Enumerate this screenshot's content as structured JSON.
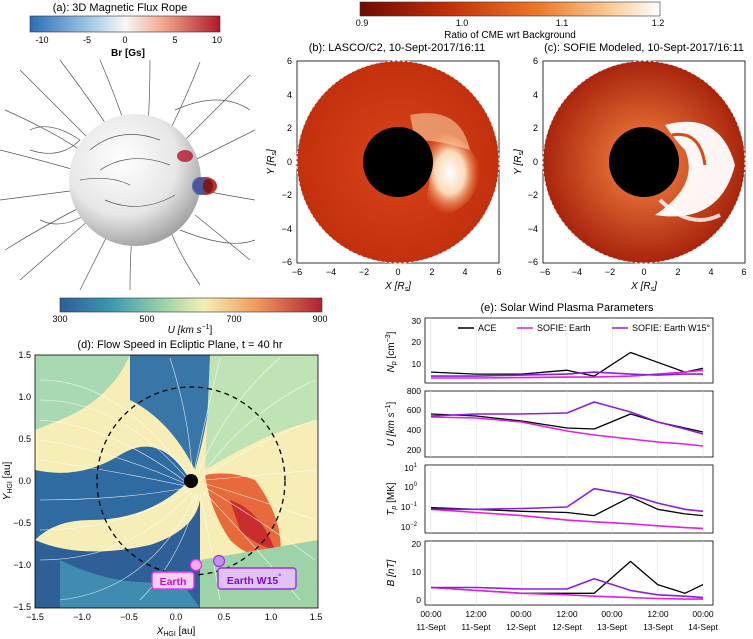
{
  "panel_a": {
    "title": "(a): 3D Magnetic Flux Rope",
    "colorbar_ticks": [
      "-10",
      "-5",
      "0",
      "5",
      "10"
    ],
    "colorbar_label": "Br [Gs]"
  },
  "top_colorbar": {
    "ticks": [
      "0.9",
      "1.0",
      "1.1",
      "1.2"
    ],
    "label": "Ratio of CME wrt Background"
  },
  "panel_b": {
    "title": "(b): LASCO/C2, 10-Sept-2017/16:11",
    "xlabel": "X [R",
    "xlabel_sub": "s",
    "ylabel": "Y [R",
    "ylabel_sub": "s",
    "ticks": [
      "−6",
      "−4",
      "−2",
      "0",
      "2",
      "4",
      "6"
    ]
  },
  "panel_c": {
    "title": "(c): SOFIE Modeled, 10-Sept-2017/16:11",
    "xlabel": "X [R",
    "xlabel_sub": "s",
    "ylabel": "Y [R",
    "ylabel_sub": "s",
    "ticks": [
      "−6",
      "−4",
      "−2",
      "0",
      "2",
      "4",
      "6"
    ]
  },
  "panel_d": {
    "colorbar_ticks": [
      "300",
      "500",
      "700",
      "900"
    ],
    "colorbar_label": "U [km s",
    "colorbar_label_sup": "−1",
    "title": "(d): Flow Speed in Ecliptic Plane, t = 40 hr",
    "xlabel": "X",
    "xlabel_sub": "HGI",
    "xlabel_unit": " [au]",
    "ylabel": "Y",
    "ylabel_sub": "HGI",
    "ylabel_unit": " [au]",
    "xticks": [
      "−1.5",
      "−1.0",
      "−0.5",
      "0.0",
      "0.5",
      "1.0",
      "1.5"
    ],
    "yticks": [
      "1.5",
      "1.0",
      "0.5",
      "0.0",
      "−0.5",
      "−1.0",
      "−1.5"
    ],
    "earth_label": "Earth",
    "earth_w15_label": "Earth W15",
    "earth_w15_sup": "°",
    "colors": {
      "earth": "#e830e8",
      "earth_w15": "#9933dd"
    }
  },
  "panel_e": {
    "title": "(e): Solar Wind Plasma Parameters",
    "legend": [
      "ACE",
      "SOFIE: Earth",
      "SOFIE: Earth W15°"
    ],
    "legend_colors": [
      "#000000",
      "#e020e0",
      "#8a1ee0"
    ],
    "x_tick_times": [
      "00:00",
      "12:00",
      "00:00",
      "12:00",
      "00:00",
      "12:00",
      "00:00"
    ],
    "x_tick_dates": [
      "11-Sept",
      "11-Sept",
      "12-Sept",
      "12-Sept",
      "13-Sept",
      "13-Sept",
      "14-Sept"
    ],
    "sub_ylabels": [
      "N",
      "U [km s",
      "T",
      "B [nT]"
    ],
    "np_ticks": [
      "10",
      "20",
      "30"
    ],
    "u_ticks": [
      "200",
      "400",
      "600",
      "800"
    ],
    "t_ticks": [
      "10",
      "10",
      "10",
      "10"
    ],
    "t_exps": [
      "1",
      "0",
      "−1",
      "−2"
    ],
    "b_ticks": [
      "0",
      "10",
      "20"
    ]
  },
  "chart_data": [
    {
      "type": "line",
      "title": "(e): Solar Wind Plasma Parameters",
      "panel": "Np",
      "ylabel": "N_p [cm^-3]",
      "ylim": [
        0,
        30
      ],
      "x_days": [
        0,
        0.5,
        1,
        1.5,
        1.8,
        2.2,
        2.5,
        2.8,
        3
      ],
      "series": [
        {
          "name": "ACE",
          "values": [
            4,
            3,
            3,
            5,
            2,
            14,
            9,
            4,
            6
          ]
        },
        {
          "name": "SOFIE: Earth",
          "values": [
            1,
            1,
            1.2,
            1.5,
            1.5,
            2,
            3,
            4,
            5
          ]
        },
        {
          "name": "SOFIE: Earth W15°",
          "values": [
            2,
            2,
            2.5,
            3,
            4,
            3,
            2.5,
            3,
            3
          ]
        }
      ]
    },
    {
      "type": "line",
      "panel": "U",
      "ylabel": "U [km s^-1]",
      "ylim": [
        200,
        800
      ],
      "x_days": [
        0,
        0.5,
        1,
        1.5,
        1.8,
        2.2,
        2.5,
        2.8,
        3
      ],
      "series": [
        {
          "name": "ACE",
          "values": [
            600,
            580,
            530,
            460,
            450,
            600,
            520,
            460,
            420
          ]
        },
        {
          "name": "SOFIE: Earth",
          "values": [
            570,
            560,
            520,
            430,
            390,
            350,
            320,
            300,
            280
          ]
        },
        {
          "name": "SOFIE: Earth W15°",
          "values": [
            580,
            600,
            600,
            610,
            720,
            620,
            520,
            450,
            400
          ]
        }
      ]
    },
    {
      "type": "line",
      "panel": "T",
      "ylabel": "T_p [MK]",
      "ylim": [
        0.01,
        10
      ],
      "log_scale": true,
      "x_days": [
        0,
        0.5,
        1,
        1.5,
        1.8,
        2.2,
        2.5,
        2.8,
        3
      ],
      "series": [
        {
          "name": "ACE",
          "values": [
            0.12,
            0.1,
            0.08,
            0.07,
            0.05,
            0.4,
            0.1,
            0.06,
            0.05
          ]
        },
        {
          "name": "SOFIE: Earth",
          "values": [
            0.1,
            0.07,
            0.05,
            0.03,
            0.025,
            0.02,
            0.016,
            0.013,
            0.012
          ]
        },
        {
          "name": "SOFIE: Earth W15°",
          "values": [
            0.1,
            0.1,
            0.11,
            0.13,
            1.0,
            0.5,
            0.2,
            0.1,
            0.08
          ]
        }
      ]
    },
    {
      "type": "line",
      "panel": "B",
      "ylabel": "B [nT]",
      "ylim": [
        0,
        20
      ],
      "x_days": [
        0,
        0.5,
        1,
        1.5,
        1.8,
        2.2,
        2.5,
        2.8,
        3
      ],
      "series": [
        {
          "name": "ACE",
          "values": [
            5,
            4,
            3,
            3,
            3,
            14,
            6,
            3,
            6
          ]
        },
        {
          "name": "SOFIE: Earth",
          "values": [
            5,
            4,
            3,
            2.5,
            2,
            1.5,
            1.2,
            1,
            1
          ]
        },
        {
          "name": "SOFIE: Earth W15°",
          "values": [
            5,
            5,
            4.5,
            4.5,
            8,
            4,
            2.5,
            2,
            1.5
          ]
        }
      ]
    }
  ]
}
